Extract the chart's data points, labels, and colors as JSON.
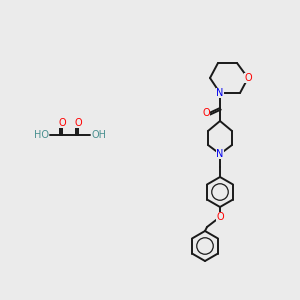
{
  "background_color": "#ebebeb",
  "bond_color": "#1a1a1a",
  "atom_colors": {
    "O": "#ff0000",
    "N": "#0000ee",
    "C": "#1a1a1a",
    "H": "#4a9090"
  },
  "figsize": [
    3.0,
    3.0
  ],
  "dpi": 100
}
